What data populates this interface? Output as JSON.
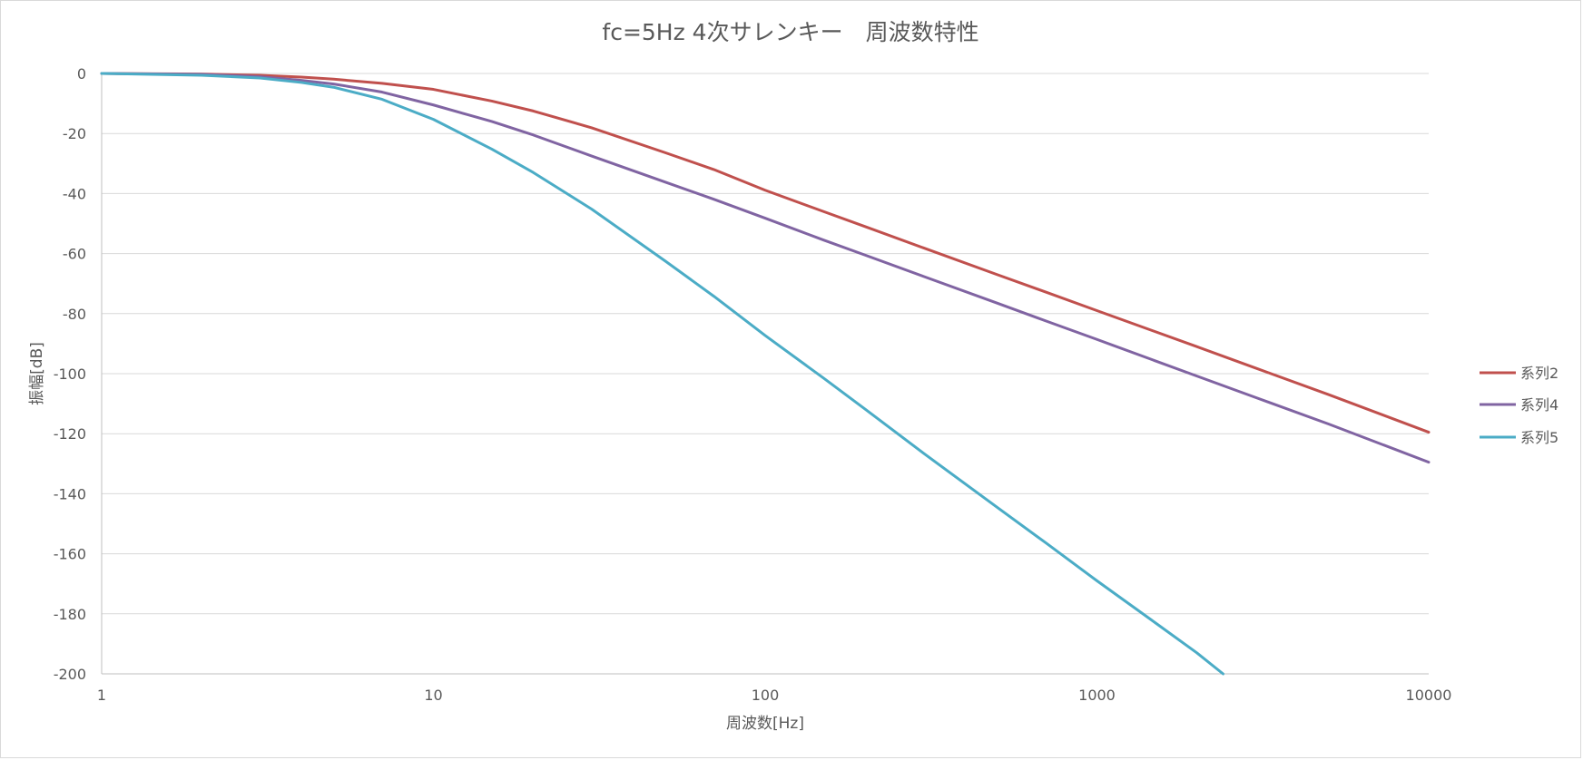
{
  "chart_data": {
    "type": "line",
    "title": "fc=5Hz 4次サレンキー　周波数特性",
    "xlabel": "周波数[Hz]",
    "ylabel": "振幅[dB]",
    "x_scale": "log",
    "xlim": [
      1,
      10000
    ],
    "ylim": [
      -200,
      0
    ],
    "x_ticks": [
      "1",
      "10",
      "100",
      "1000",
      "10000"
    ],
    "y_ticks": [
      "0",
      "-20",
      "-40",
      "-60",
      "-80",
      "-100",
      "-120",
      "-140",
      "-160",
      "-180",
      "-200"
    ],
    "grid": "horizontal",
    "legend_position": "right",
    "series": [
      {
        "name": "系列2",
        "color": "#c0504d",
        "points": [
          [
            1,
            0
          ],
          [
            2,
            -0.2
          ],
          [
            3,
            -0.6
          ],
          [
            4,
            -1.2
          ],
          [
            5,
            -1.9
          ],
          [
            7,
            -3.3
          ],
          [
            10,
            -5.3
          ],
          [
            15,
            -9.2
          ],
          [
            20,
            -12.5
          ],
          [
            30,
            -18.1
          ],
          [
            50,
            -26.4
          ],
          [
            70,
            -32.0
          ],
          [
            100,
            -38.9
          ],
          [
            150,
            -46.0
          ],
          [
            200,
            -51.0
          ],
          [
            300,
            -58.1
          ],
          [
            500,
            -67.0
          ],
          [
            700,
            -72.8
          ],
          [
            1000,
            -79.0
          ],
          [
            2000,
            -91.0
          ],
          [
            3000,
            -98.1
          ],
          [
            5000,
            -107.0
          ],
          [
            10000,
            -119.5
          ]
        ]
      },
      {
        "name": "系列4",
        "color": "#8064a2",
        "points": [
          [
            1,
            0
          ],
          [
            2,
            -0.3
          ],
          [
            3,
            -1.1
          ],
          [
            4,
            -2.3
          ],
          [
            5,
            -3.5
          ],
          [
            7,
            -6.2
          ],
          [
            10,
            -10.5
          ],
          [
            15,
            -16.0
          ],
          [
            20,
            -20.5
          ],
          [
            30,
            -27.5
          ],
          [
            50,
            -36.2
          ],
          [
            70,
            -41.9
          ],
          [
            100,
            -48.2
          ],
          [
            150,
            -55.5
          ],
          [
            200,
            -60.5
          ],
          [
            300,
            -67.6
          ],
          [
            500,
            -76.5
          ],
          [
            700,
            -82.4
          ],
          [
            1000,
            -88.6
          ],
          [
            2000,
            -100.8
          ],
          [
            3000,
            -107.9
          ],
          [
            5000,
            -116.8
          ],
          [
            10000,
            -129.5
          ]
        ]
      },
      {
        "name": "系列5",
        "color": "#4bacc6",
        "points": [
          [
            1,
            0
          ],
          [
            2,
            -0.6
          ],
          [
            3,
            -1.5
          ],
          [
            4,
            -3.0
          ],
          [
            5,
            -4.6
          ],
          [
            7,
            -8.6
          ],
          [
            10,
            -15.3
          ],
          [
            15,
            -25.2
          ],
          [
            20,
            -33.0
          ],
          [
            30,
            -45.2
          ],
          [
            50,
            -62.5
          ],
          [
            70,
            -74.2
          ],
          [
            100,
            -87.3
          ],
          [
            150,
            -101.5
          ],
          [
            200,
            -111.8
          ],
          [
            300,
            -126.5
          ],
          [
            500,
            -144.5
          ],
          [
            700,
            -156.3
          ],
          [
            1000,
            -169.0
          ],
          [
            1500,
            -183.0
          ],
          [
            2000,
            -193.0
          ],
          [
            2400,
            -200.0
          ]
        ]
      }
    ]
  }
}
